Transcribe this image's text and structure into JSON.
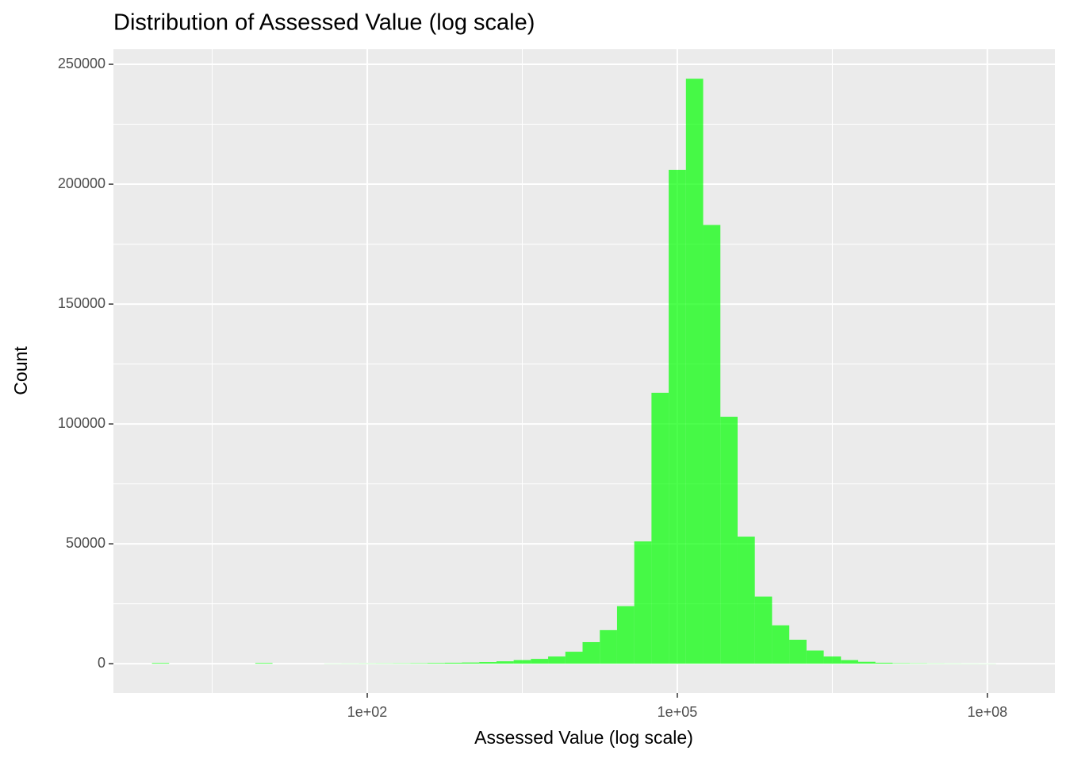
{
  "chart_data": {
    "type": "histogram",
    "title": "Distribution of Assessed Value (log scale)",
    "x_label": "Assessed Value (log scale)",
    "y_label": "Count",
    "x_log": true,
    "color": "#00FF00",
    "alpha": 0.7,
    "grid": true,
    "bins": [
      0.8254,
      1.2115,
      1.7783,
      2.6102,
      3.8312,
      5.6234,
      8.254,
      12.115,
      17.783,
      26.102,
      38.312,
      56.234,
      82.54,
      121.15,
      177.83,
      261.02,
      383.12,
      562.34,
      825.4,
      1211.5,
      1778.3,
      2610.2,
      3831.2,
      5623.4,
      8254,
      12115,
      17783,
      26102,
      38312,
      56234,
      82540,
      121150,
      177830,
      261020,
      383120,
      562340,
      825400,
      1211500,
      1778300,
      2610200,
      3831200,
      5623400,
      8254000,
      12115000,
      17783000,
      26102000,
      38312000,
      56234000,
      82540000,
      121150000
    ],
    "values": [
      300,
      0,
      0,
      0,
      0,
      0,
      300,
      0,
      0,
      0,
      60,
      80,
      100,
      120,
      150,
      200,
      300,
      400,
      500,
      700,
      1000,
      1500,
      2000,
      3000,
      5000,
      9000,
      14000,
      24000,
      51000,
      113000,
      206000,
      244000,
      183000,
      103000,
      53000,
      28000,
      16000,
      10000,
      5500,
      3000,
      1500,
      800,
      400,
      200,
      150,
      100,
      80,
      60,
      50
    ],
    "xlim": [
      0.35,
      450000000
    ],
    "xticks": [
      {
        "value": 100,
        "label": "1e+02"
      },
      {
        "value": 100000,
        "label": "1e+05"
      },
      {
        "value": 100000000,
        "label": "1e+08"
      }
    ],
    "ylim": [
      -12200,
      256300
    ],
    "yticks": [
      0,
      50000,
      100000,
      150000,
      200000,
      250000
    ]
  }
}
